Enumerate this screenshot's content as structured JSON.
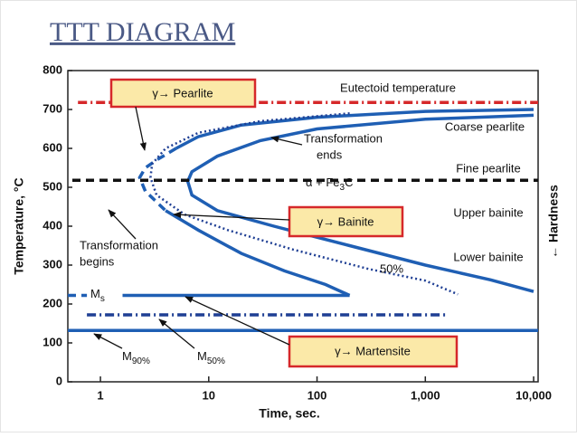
{
  "chart_data": {
    "type": "line",
    "title": "TTT DIAGRAM",
    "xlabel": "Time, sec.",
    "ylabel": "Temperature, °C",
    "xscale": "log",
    "xlim": [
      0.5,
      11000
    ],
    "ylim": [
      0,
      800
    ],
    "xticks": [
      1,
      10,
      100,
      {
        "value": 1000,
        "label": "1,000"
      },
      {
        "value": 10000,
        "label": "10,000"
      }
    ],
    "yticks": [
      0,
      100,
      200,
      300,
      400,
      500,
      600,
      700,
      800
    ],
    "series": [
      {
        "color": "#1f5fb4",
        "dash": "solid",
        "x": [
          10000,
          1000,
          100,
          20,
          8,
          5
        ],
        "values": [
          700,
          695,
          680,
          660,
          630,
          600
        ]
      },
      {
        "color": "#1f5fb4",
        "dash": "dashed",
        "x": [
          5,
          3.3,
          2.6,
          2.3,
          2.6,
          4
        ],
        "values": [
          600,
          570,
          550,
          525,
          490,
          440
        ]
      },
      {
        "color": "#1f5fb4",
        "dash": "solid",
        "x": [
          4,
          8,
          20,
          50,
          120,
          200
        ],
        "values": [
          440,
          390,
          330,
          285,
          250,
          222
        ]
      },
      {
        "color": "#1f5fb4",
        "dash": "solid",
        "x": [
          10000,
          1000,
          100,
          30,
          12,
          7,
          6.4,
          7,
          12,
          40,
          200,
          1000,
          4000,
          10000
        ],
        "values": [
          685,
          675,
          650,
          620,
          580,
          540,
          515,
          480,
          440,
          400,
          350,
          300,
          262,
          232
        ]
      },
      {
        "color": "#1f3f94",
        "dash": "dotted",
        "x": [
          200,
          30,
          8,
          4,
          3,
          2.9,
          3.3,
          6,
          15,
          60,
          300,
          1000,
          2000
        ],
        "values": [
          690,
          670,
          640,
          600,
          560,
          525,
          480,
          430,
          390,
          340,
          290,
          260,
          225
        ]
      },
      {
        "color": "#1f5fb4",
        "dash": "dashed",
        "x": [
          0.5,
          0.75
        ],
        "values": [
          222,
          222
        ]
      },
      {
        "color": "#1f5fb4",
        "dash": "solid",
        "x": [
          1.6,
          200
        ],
        "values": [
          222,
          222
        ]
      },
      {
        "color": "#1f3f94",
        "dash": "dashdot",
        "x": [
          0.75,
          1600
        ],
        "values": [
          172,
          172
        ]
      },
      {
        "color": "#1f5fb4",
        "dash": "solid",
        "x": [
          0.5,
          11000
        ],
        "values": [
          132,
          132
        ]
      },
      {
        "color": "#d6282a",
        "dash": "dashdot",
        "x": [
          0.62,
          11000
        ],
        "values": [
          718,
          718
        ]
      },
      {
        "color": "#111111",
        "dash": "dashed",
        "x": [
          0.55,
          11000
        ],
        "values": [
          518,
          518
        ]
      }
    ],
    "boxes": [
      "γ→ Pearlite",
      "γ→ Bainite",
      "γ→ Martensite"
    ],
    "annotations": [
      {
        "text": "Eutectoid temperature"
      },
      {
        "text": "Coarse pearlite"
      },
      {
        "text": "Transformation"
      },
      {
        "text": "ends"
      },
      {
        "text": "Fine pearlite"
      },
      {
        "text": "α + Fe",
        "sub": "3",
        "after": "C"
      },
      {
        "text": "Upper bainite"
      },
      {
        "text": "Lower bainite"
      },
      {
        "text": "50%"
      },
      {
        "text": "Transformation"
      },
      {
        "text": "begins"
      },
      {
        "text": "M",
        "sub": "s"
      },
      {
        "text": "M",
        "sub": "90%"
      },
      {
        "text": "M",
        "sub": "50%"
      },
      {
        "text": "← Hardness"
      }
    ]
  }
}
